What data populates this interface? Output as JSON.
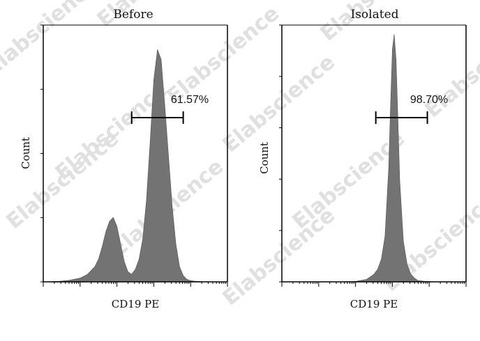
{
  "chart_data": [
    {
      "type": "area",
      "title": "Before",
      "xlabel": "CD19 PE",
      "ylabel": "Count",
      "x_scale": "log",
      "x": [
        0,
        0.08,
        0.14,
        0.2,
        0.24,
        0.28,
        0.3,
        0.32,
        0.34,
        0.36,
        0.38,
        0.4,
        0.42,
        0.44,
        0.46,
        0.48,
        0.5,
        0.52,
        0.54,
        0.56,
        0.58,
        0.6,
        0.62,
        0.64,
        0.66,
        0.68,
        0.7,
        0.72,
        0.74,
        0.76,
        0.78,
        0.8,
        0.82,
        0.84,
        0.86,
        0.88,
        0.9,
        0.95,
        1.0
      ],
      "values": [
        0,
        0.2,
        0.6,
        1.5,
        3,
        6,
        9,
        14,
        20,
        24,
        25.5,
        22,
        15,
        8,
        4,
        3,
        5,
        9,
        17,
        32,
        55,
        80,
        92,
        88,
        70,
        50,
        30,
        15,
        6,
        2.5,
        1,
        0.5,
        0.3,
        0.2,
        0.1,
        0,
        0,
        0,
        0
      ],
      "ylim": [
        0,
        100
      ],
      "gate": {
        "label": "61.57%",
        "range": [
          0.48,
          0.76
        ]
      }
    },
    {
      "type": "area",
      "title": "Isolated",
      "xlabel": "CD19 PE",
      "ylabel": "Count",
      "x_scale": "log",
      "x": [
        0,
        0.3,
        0.4,
        0.46,
        0.5,
        0.52,
        0.54,
        0.56,
        0.58,
        0.59,
        0.6,
        0.61,
        0.62,
        0.63,
        0.64,
        0.66,
        0.68,
        0.7,
        0.72,
        0.74,
        0.78,
        0.85,
        1.0
      ],
      "values": [
        0,
        0,
        0.2,
        1,
        3,
        5,
        9,
        18,
        45,
        70,
        92,
        98,
        88,
        65,
        40,
        16,
        7,
        3,
        1.5,
        0.5,
        0.2,
        0,
        0
      ],
      "ylim": [
        0,
        100
      ],
      "gate": {
        "label": "98.70%",
        "range": [
          0.51,
          0.79
        ]
      }
    }
  ],
  "watermark": {
    "text": "Elabscience",
    "symbol": "®",
    "color": "#e0e0e0"
  },
  "fill_color": "#737373"
}
